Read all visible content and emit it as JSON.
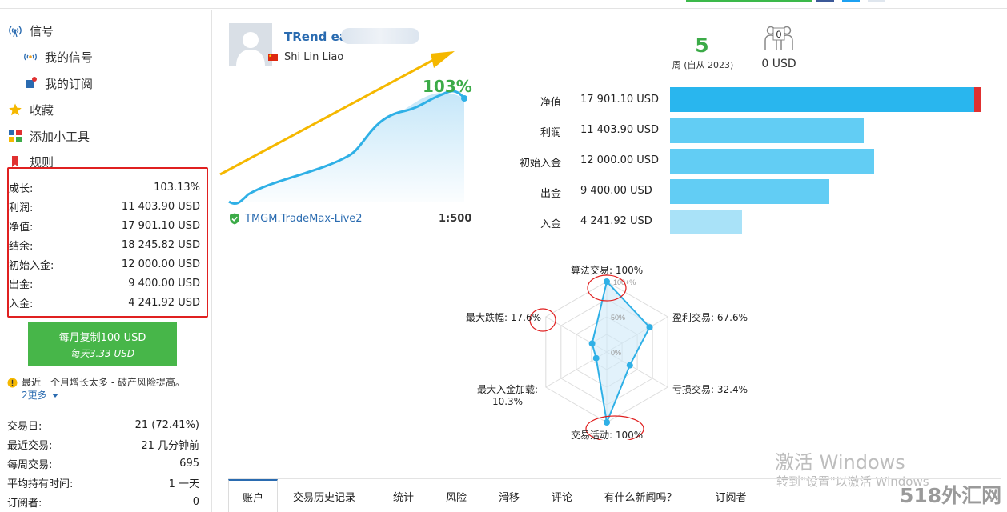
{
  "nav": {
    "signals": "信号",
    "my_signals": "我的信号",
    "my_subscriptions": "我的订阅",
    "favorites": "收藏",
    "add_widget": "添加小工具",
    "rules": "规则"
  },
  "stats": [
    {
      "label": "成长:",
      "value": "103.13%"
    },
    {
      "label": "利润:",
      "value": "11 403.90 USD"
    },
    {
      "label": "净值:",
      "value": "17 901.10 USD"
    },
    {
      "label": "结余:",
      "value": "18 245.82 USD"
    },
    {
      "label": "初始入金:",
      "value": "12 000.00 USD"
    },
    {
      "label": "出金:",
      "value": "9 400.00 USD"
    },
    {
      "label": "入金:",
      "value": "4 241.92 USD"
    }
  ],
  "copy_button": {
    "line1": "每月复制100 USD",
    "line2": "每天3.33 USD"
  },
  "warning": {
    "text": "最近一个月增长太多 - 破产风险提高。",
    "more": "2更多"
  },
  "info": [
    {
      "label": "交易日:",
      "value": "21 (72.41%)"
    },
    {
      "label": "最近交易:",
      "value": "21 几分钟前"
    },
    {
      "label": "每周交易:",
      "value": "695"
    },
    {
      "label": "平均持有时间:",
      "value": "1 一天"
    },
    {
      "label": "订阅者:",
      "value": "0"
    }
  ],
  "signal": {
    "name": "TRend ea",
    "author": "Shi Lin Liao",
    "growth": "103%",
    "broker": "TMGM.TradeMax-Live2",
    "leverage": "1:500"
  },
  "summary": {
    "weeks": "5",
    "weeks_label": "周 (自从 2023)",
    "subscribers_badge": "0",
    "subscribers_usd": "0 USD"
  },
  "balances": [
    {
      "label": "净值",
      "value": "17 901.10 USD",
      "amount": 17901.1,
      "color": "#29b6ee"
    },
    {
      "label": "利润",
      "value": "11 403.90 USD",
      "amount": 11403.9,
      "color": "#62cdf4"
    },
    {
      "label": "初始入金",
      "value": "12 000.00 USD",
      "amount": 12000.0,
      "color": "#62cdf4"
    },
    {
      "label": "出金",
      "value": "9 400.00 USD",
      "amount": 9400.0,
      "color": "#62cdf4"
    },
    {
      "label": "入金",
      "value": "4 241.92 USD",
      "amount": 4241.92,
      "color": "#a9e2f8"
    }
  ],
  "balances_max": 18245.82,
  "equity_drawdown_color": "#e03030",
  "radar": {
    "algo": "算法交易: 100%",
    "profit": "盈利交易: 67.6%",
    "loss": "亏损交易: 32.4%",
    "activity": "交易活动: 100%",
    "deposit_load_l1": "最大入金加载:",
    "deposit_load_l2": "10.3%",
    "drawdown": "最大跌幅: 17.6%",
    "tick100": "100+%",
    "tick50": "50%",
    "tick0": "0%"
  },
  "chart_data": {
    "type": "radar",
    "axes": [
      "算法交易",
      "盈利交易",
      "亏损交易",
      "交易活动",
      "最大入金加载",
      "最大跌幅"
    ],
    "values": [
      100,
      67.6,
      32.4,
      100,
      10.3,
      17.6
    ],
    "range": [
      0,
      100
    ]
  },
  "watermark": {
    "line1": "激活 Windows",
    "line2": "转到\"设置\"以激活 Windows",
    "site": "518外汇网"
  },
  "tabs": [
    "账户",
    "交易历史记录",
    "统计",
    "风险",
    "滑移",
    "评论",
    "有什么新闻吗？",
    "订阅者"
  ]
}
